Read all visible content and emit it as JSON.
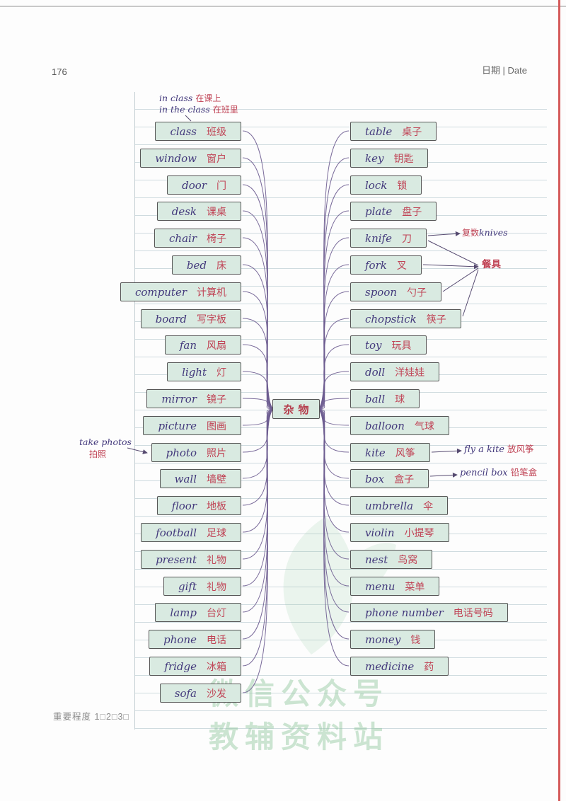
{
  "page": {
    "number": "176",
    "date_label": "日期 | Date",
    "footer": "重要程度 1□2□3□"
  },
  "watermark": {
    "line1": "微信公众号",
    "line2": "教辅资料站"
  },
  "center_node": {
    "label": "杂物"
  },
  "left_items": [
    {
      "en": "class",
      "zh": "班级"
    },
    {
      "en": "window",
      "zh": "窗户"
    },
    {
      "en": "door",
      "zh": "门"
    },
    {
      "en": "desk",
      "zh": "课桌"
    },
    {
      "en": "chair",
      "zh": "椅子"
    },
    {
      "en": "bed",
      "zh": "床"
    },
    {
      "en": "computer",
      "zh": "计算机"
    },
    {
      "en": "board",
      "zh": "写字板"
    },
    {
      "en": "fan",
      "zh": "风扇"
    },
    {
      "en": "light",
      "zh": "灯"
    },
    {
      "en": "mirror",
      "zh": "镜子"
    },
    {
      "en": "picture",
      "zh": "图画"
    },
    {
      "en": "photo",
      "zh": "照片"
    },
    {
      "en": "wall",
      "zh": "墙壁"
    },
    {
      "en": "floor",
      "zh": "地板"
    },
    {
      "en": "football",
      "zh": "足球"
    },
    {
      "en": "present",
      "zh": "礼物"
    },
    {
      "en": "gift",
      "zh": "礼物"
    },
    {
      "en": "lamp",
      "zh": "台灯"
    },
    {
      "en": "phone",
      "zh": "电话"
    },
    {
      "en": "fridge",
      "zh": "冰箱"
    },
    {
      "en": "sofa",
      "zh": "沙发"
    }
  ],
  "right_items": [
    {
      "en": "table",
      "zh": "桌子"
    },
    {
      "en": "key",
      "zh": "钥匙"
    },
    {
      "en": "lock",
      "zh": "锁"
    },
    {
      "en": "plate",
      "zh": "盘子"
    },
    {
      "en": "knife",
      "zh": "刀"
    },
    {
      "en": "fork",
      "zh": "叉"
    },
    {
      "en": "spoon",
      "zh": "勺子"
    },
    {
      "en": "chopstick",
      "zh": "筷子"
    },
    {
      "en": "toy",
      "zh": "玩具"
    },
    {
      "en": "doll",
      "zh": "洋娃娃"
    },
    {
      "en": "ball",
      "zh": "球"
    },
    {
      "en": "balloon",
      "zh": "气球"
    },
    {
      "en": "kite",
      "zh": "风筝"
    },
    {
      "en": "box",
      "zh": "盒子"
    },
    {
      "en": "umbrella",
      "zh": "伞"
    },
    {
      "en": "violin",
      "zh": "小提琴"
    },
    {
      "en": "nest",
      "zh": "鸟窝"
    },
    {
      "en": "menu",
      "zh": "菜单"
    },
    {
      "en": "phone number",
      "zh": "电话号码"
    },
    {
      "en": "money",
      "zh": "钱"
    },
    {
      "en": "medicine",
      "zh": "药"
    }
  ],
  "annotations": {
    "in_class": {
      "en": "in class",
      "zh": "在课上"
    },
    "in_the_class": {
      "en": "in the class",
      "zh": "在班里"
    },
    "take_photos": {
      "en": "take photos",
      "zh": "拍照"
    },
    "plural_knives": {
      "zh": "复数",
      "en": "knives"
    },
    "tableware": {
      "zh": "餐具"
    },
    "fly_a_kite": {
      "en": "fly a kite",
      "zh": "放风筝"
    },
    "pencil_box": {
      "en": "pencil box",
      "zh": "铅笔盒"
    }
  },
  "colors": {
    "box_fill": "#d9eae1",
    "box_border": "#565656",
    "en_color": "#43397c",
    "zh_color": "#c04355",
    "line_color": "#6d5c90",
    "arrow_color": "#564a70",
    "center_text": "#b53c4c",
    "watermark": "#8fc79d",
    "margin_red": "#d45a5a",
    "rule_color": "#cfdbdf",
    "meta_gray": "#8a8a8a"
  }
}
